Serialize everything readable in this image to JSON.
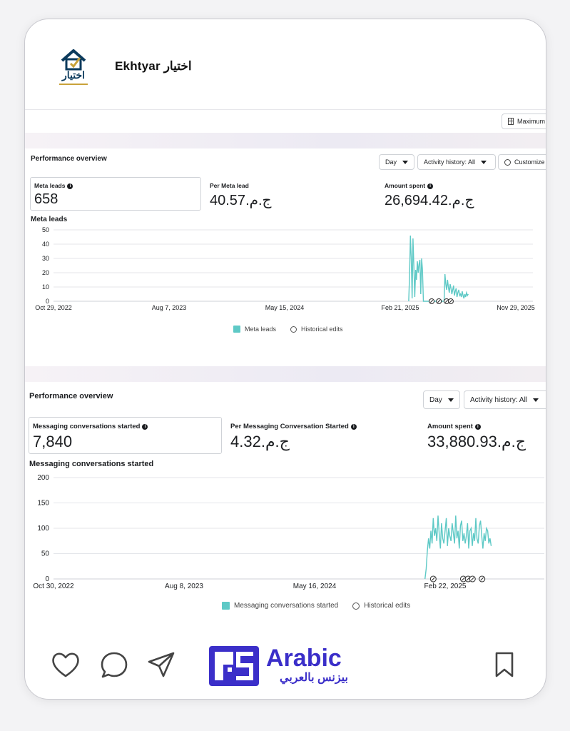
{
  "post": {
    "name": "Ekhtyar اختيار",
    "logo_text": "اختيار"
  },
  "footer": {
    "brand_en": "Arabic",
    "brand_ar": "بيزنس بالعربي",
    "brand_color": "#3b2fc9"
  },
  "shot1": {
    "maximum_label": "Maximum",
    "title": "Performance overview",
    "day_label": "Day",
    "activity_label": "Activity history: All",
    "customize_label": "Customize",
    "metrics": [
      {
        "label": "Meta leads",
        "value": "658"
      },
      {
        "label": "Per Meta lead",
        "value": "40.57ج.م.‏"
      },
      {
        "label": "Amount spent",
        "value": "26,694.42ج.م.‏"
      }
    ],
    "chart_title": "Meta leads",
    "legend_series": "Meta leads",
    "legend_edits": "Historical edits"
  },
  "shot2": {
    "title": "Performance overview",
    "day_label": "Day",
    "activity_label": "Activity history: All",
    "metrics": [
      {
        "label": "Messaging conversations started",
        "value": "7,840"
      },
      {
        "label": "Per Messaging Conversation Started",
        "value": "4.32ج.م.‏"
      },
      {
        "label": "Amount spent",
        "value": "33,880.93ج.م.‏"
      }
    ],
    "chart_title": "Messaging conversations started",
    "legend_series": "Messaging conversations started",
    "legend_edits": "Historical edits"
  },
  "chart_data": [
    {
      "type": "line",
      "title": "Meta leads",
      "series_color": "#5ec9c6",
      "ylim": [
        0,
        50
      ],
      "yticks": [
        0,
        10,
        20,
        30,
        40,
        50
      ],
      "xticks": [
        "Oct 29, 2022",
        "Aug 7, 2023",
        "May 15, 2024",
        "Feb 21, 2025",
        "Nov 29, 2025"
      ],
      "xrange": [
        "2022-10-29",
        "2025-11-29"
      ],
      "series": [
        {
          "x_start": "2025-02-10",
          "x_end": "2025-06-30",
          "values": [
            0,
            18,
            46,
            30,
            2,
            44,
            25,
            3,
            22,
            15,
            28,
            20,
            26,
            29,
            5,
            30,
            22,
            0,
            0,
            0,
            0,
            0,
            0,
            0,
            0,
            0,
            0,
            0,
            0,
            0,
            0,
            0,
            0,
            0,
            0,
            0,
            0,
            0,
            0,
            0,
            0,
            0,
            19,
            12,
            8,
            15,
            10,
            6,
            12,
            9,
            5,
            8,
            11,
            4,
            7,
            9,
            3,
            6,
            8,
            4,
            5,
            3,
            7,
            4,
            2,
            5,
            3,
            6,
            4,
            5
          ]
        }
      ],
      "edit_markers": [
        "2025-04-05",
        "2025-04-22",
        "2025-05-10",
        "2025-05-20"
      ]
    },
    {
      "type": "line",
      "title": "Messaging conversations started",
      "series_color": "#5ec9c6",
      "ylim": [
        0,
        200
      ],
      "yticks": [
        0,
        50,
        100,
        150,
        200
      ],
      "xticks": [
        "Oct 30, 2022",
        "Aug 8, 2023",
        "May 16, 2024",
        "Feb 22, 2025"
      ],
      "xrange": [
        "2022-10-30",
        "2025-11-30"
      ],
      "series": [
        {
          "x_start": "2025-03-01",
          "x_end": "2025-07-31",
          "values": [
            0,
            20,
            55,
            80,
            60,
            95,
            70,
            120,
            85,
            100,
            75,
            125,
            90,
            60,
            110,
            80,
            70,
            95,
            120,
            65,
            100,
            85,
            75,
            110,
            90,
            70,
            125,
            80,
            95,
            60,
            105,
            115,
            75,
            90,
            70,
            85,
            110,
            60,
            95,
            100,
            65,
            90,
            75,
            120,
            80,
            70,
            105,
            115,
            85,
            60,
            90,
            75,
            100,
            95,
            70,
            80,
            65
          ]
        }
      ],
      "edit_markers": [
        "2025-03-20",
        "2025-05-28",
        "2025-06-08",
        "2025-06-18",
        "2025-07-10"
      ]
    }
  ]
}
